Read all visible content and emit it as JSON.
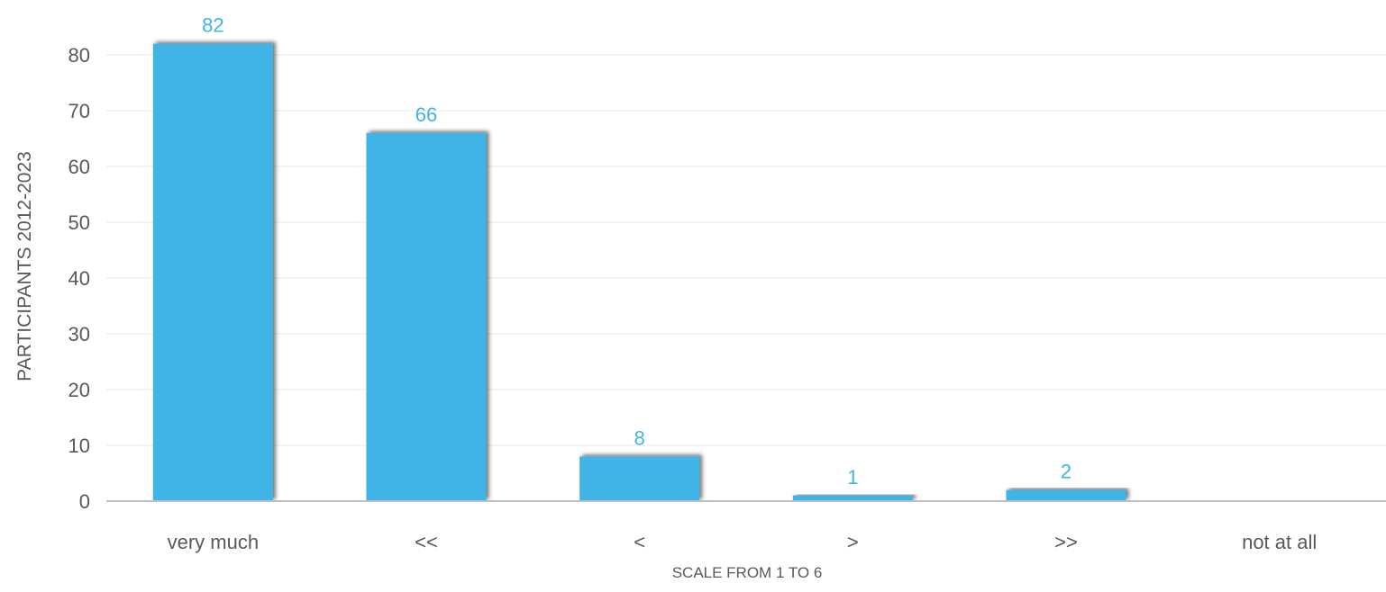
{
  "chart_data": {
    "type": "bar",
    "categories": [
      "very much",
      "<<",
      "<",
      ">",
      ">>",
      "not at all"
    ],
    "values": [
      82,
      66,
      8,
      1,
      2,
      null
    ],
    "data_labels": [
      "82",
      "66",
      "8",
      "1",
      "2",
      ""
    ],
    "xlabel": "SCALE FROM 1 TO 6",
    "ylabel": "PARTICIPANTS 2012-2023",
    "ylim": [
      0,
      80
    ],
    "yticks": [
      0,
      10,
      20,
      30,
      40,
      50,
      60,
      70,
      80
    ],
    "grid": true,
    "legend": "none"
  },
  "colors": {
    "bar": "#41B4E6",
    "data_label": "#41B4E6",
    "axis_text": "#595959",
    "grid": "#EDEDED",
    "axis_line": "#BFBFBF"
  }
}
